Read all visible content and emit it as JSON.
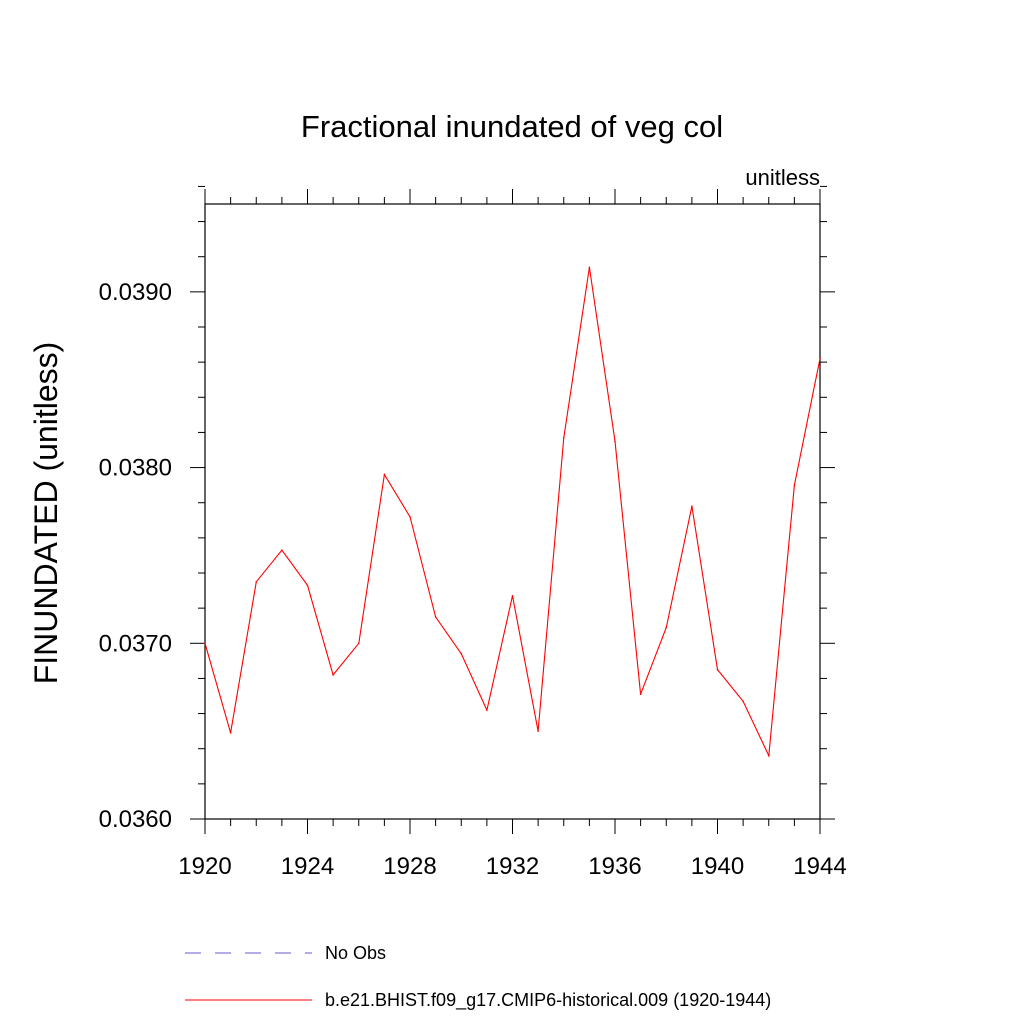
{
  "chart_data": {
    "type": "line",
    "title": "Fractional inundated of veg col",
    "units_label": "unitless",
    "ylabel": "FINUNDATED  (unitless)",
    "xlabel": "",
    "xlim": [
      1920,
      1944
    ],
    "ylim": [
      0.036,
      0.0395
    ],
    "x_ticks": [
      1920,
      1924,
      1928,
      1932,
      1936,
      1940,
      1944
    ],
    "x_tick_labels": [
      "1920",
      "1924",
      "1928",
      "1932",
      "1936",
      "1940",
      "1944"
    ],
    "y_ticks": [
      0.036,
      0.037,
      0.038,
      0.039
    ],
    "y_tick_labels": [
      "0.0360",
      "0.0370",
      "0.0380",
      "0.0390"
    ],
    "series": [
      {
        "name": "b.e21.BHIST.f09_g17.CMIP6-historical.009 (1920-1944)",
        "color": "#ff0000",
        "style": "solid",
        "x": [
          1920,
          1921,
          1922,
          1923,
          1924,
          1925,
          1926,
          1927,
          1928,
          1929,
          1930,
          1931,
          1932,
          1933,
          1934,
          1935,
          1936,
          1937,
          1938,
          1939,
          1940,
          1941,
          1942,
          1943,
          1944
        ],
        "values": [
          0.037,
          0.03649,
          0.03735,
          0.03753,
          0.03733,
          0.03682,
          0.037,
          0.03796,
          0.03772,
          0.03715,
          0.03694,
          0.03662,
          0.03727,
          0.0365,
          0.03817,
          0.03914,
          0.03815,
          0.03671,
          0.03709,
          0.03778,
          0.03685,
          0.03667,
          0.03636,
          0.0379,
          0.03862
        ]
      }
    ],
    "legend": [
      {
        "label": "No Obs",
        "color": "#6a5acd",
        "style": "dashed"
      },
      {
        "label": "b.e21.BHIST.f09_g17.CMIP6-historical.009 (1920-1944)",
        "color": "#ff0000",
        "style": "solid"
      }
    ]
  }
}
